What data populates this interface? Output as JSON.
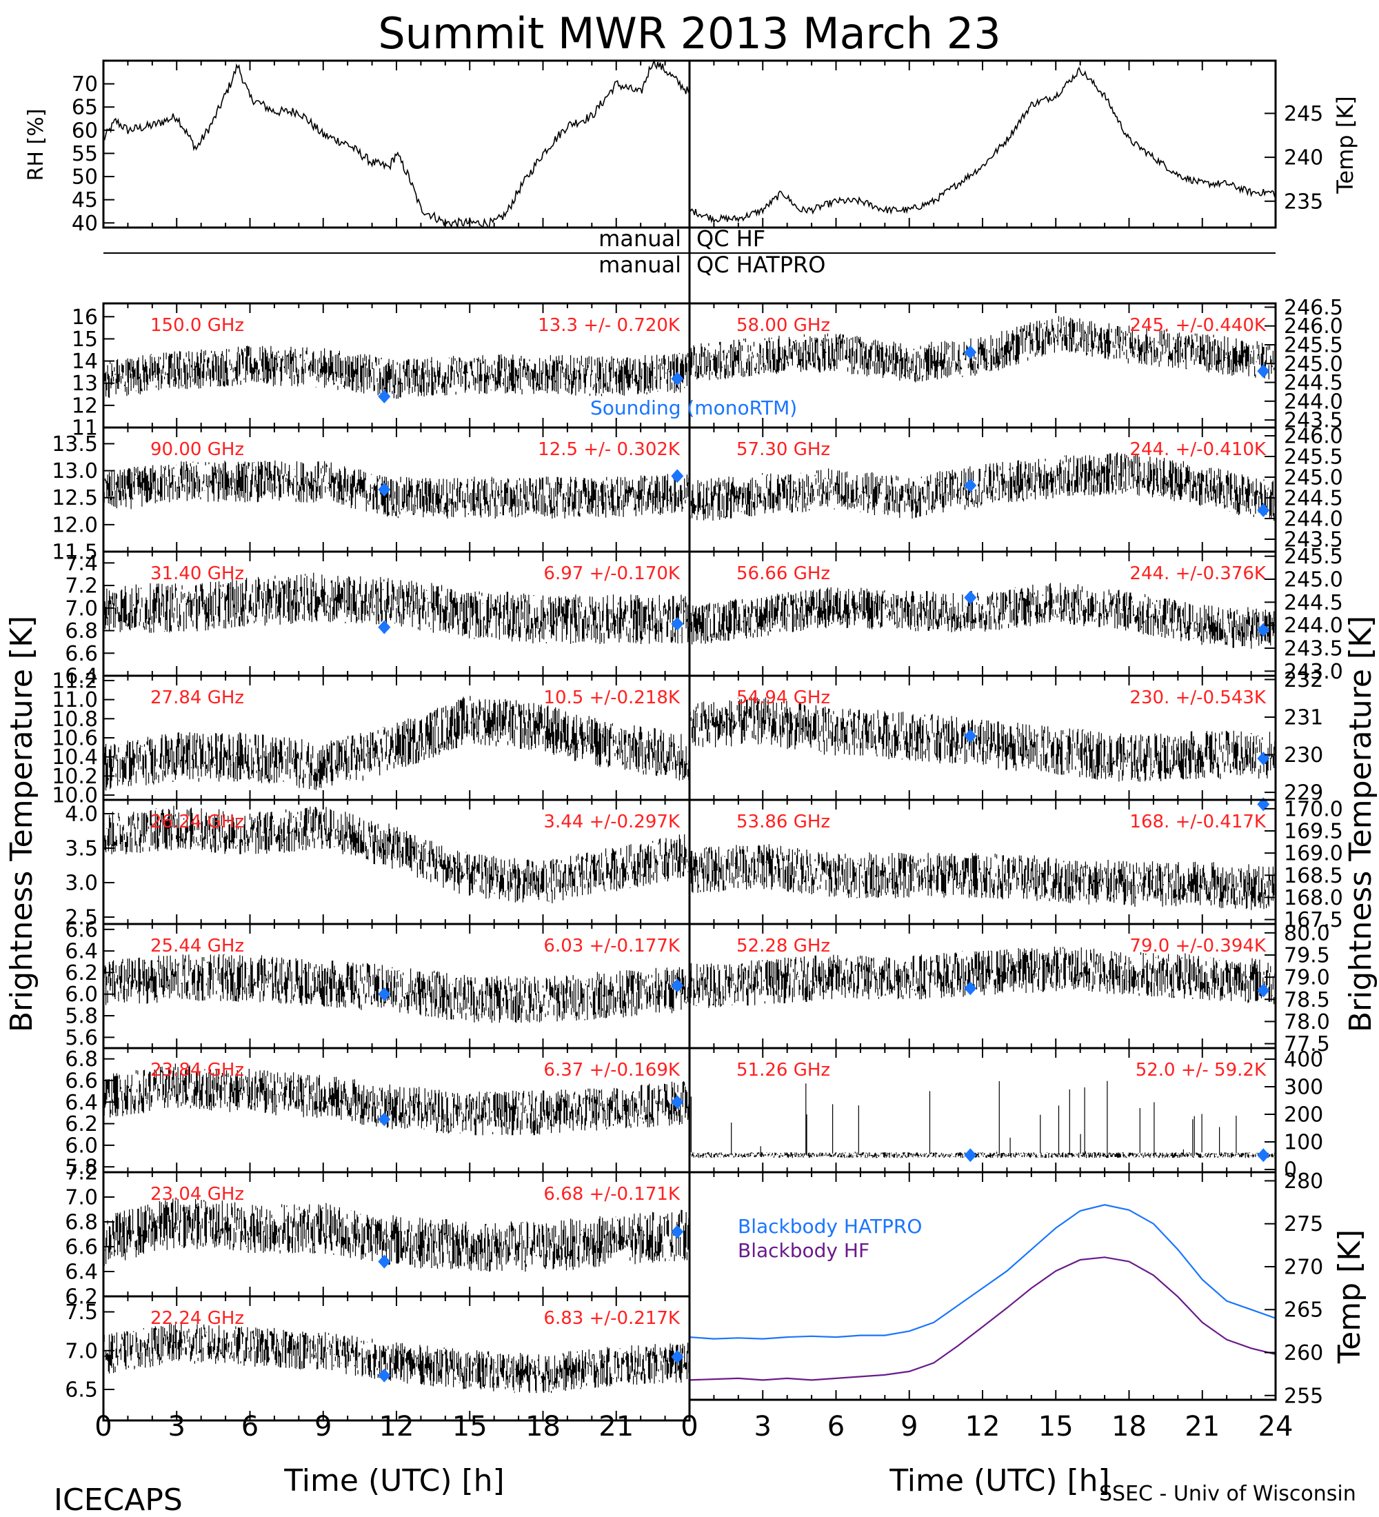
{
  "title": "Summit MWR 2013 March 23",
  "footer": {
    "left": "ICECAPS",
    "right": "SSEC - Univ of Wisconsin",
    "xlabel_left": "Time (UTC) [h]",
    "xlabel_right": "Time (UTC) [h]"
  },
  "ylabels": {
    "left": "Brightness Temperature [K]",
    "right": "Brightness Temperature [K]",
    "rh": "RH [%]",
    "temp_top": "Temp [K]",
    "temp_bb": "Temp [K]"
  },
  "qc": {
    "left1": "manual",
    "right1": "QC HF",
    "left2": "manual",
    "right2": "QC HATPRO"
  },
  "xticks": [
    "0",
    "3",
    "6",
    "9",
    "12",
    "15",
    "18",
    "21",
    "24"
  ],
  "colors": {
    "annotation": "#ff2020",
    "sounding": "#1a75ff",
    "hatpro": "#1a75ff",
    "hf": "#6a1a8a",
    "trace": "#000000"
  },
  "legend": {
    "sounding": "Sounding (monoRTM)",
    "bb_hatpro": "Blackbody HATPRO",
    "bb_hf": "Blackbody HF"
  },
  "chart_data": [
    {
      "id": "rh",
      "type": "line",
      "ylabel": "RH [%]",
      "xlim": [
        0,
        24
      ],
      "ylim": [
        39,
        75
      ],
      "yticks": [
        "40",
        "45",
        "50",
        "55",
        "60",
        "65",
        "70"
      ],
      "x": [
        0,
        0.5,
        1,
        2,
        3,
        3.8,
        4.5,
        5.2,
        5.5,
        6,
        7,
        8,
        9,
        10,
        11,
        11.7,
        12,
        12.5,
        13,
        14,
        15,
        16,
        16.5,
        17,
        18,
        19,
        20,
        21,
        22,
        22.5,
        23,
        24
      ],
      "y": [
        58,
        62,
        60,
        61,
        63,
        56,
        62,
        70,
        74,
        67,
        64,
        64,
        59,
        57,
        53,
        52,
        55,
        50,
        43,
        40,
        40,
        40,
        42,
        47,
        55,
        61,
        63,
        70,
        68,
        75,
        73,
        68
      ]
    },
    {
      "id": "air_temp",
      "type": "line",
      "ylabel": "Temp [K]",
      "xlim": [
        0,
        24
      ],
      "ylim": [
        232,
        251
      ],
      "yticks": [
        "235",
        "240",
        "245"
      ],
      "x": [
        0,
        1,
        2,
        3,
        3.8,
        4.5,
        5,
        6,
        7,
        8,
        9,
        10,
        11,
        12,
        13,
        14,
        15,
        16,
        17,
        18,
        19,
        20,
        21,
        22,
        23,
        24
      ],
      "y": [
        234,
        233,
        233,
        234,
        236,
        234,
        234,
        235,
        235,
        234,
        234,
        235,
        237,
        239,
        242,
        246,
        247,
        250,
        247,
        242,
        240,
        238,
        237,
        237,
        236,
        236
      ]
    },
    {
      "id": "ch_150.0",
      "type": "scatter",
      "side": "left",
      "freq": "150.0 GHz",
      "stat": "13.3 +/- 0.720K",
      "ylim": [
        11,
        16.6
      ],
      "yticks": [
        "11",
        "12",
        "13",
        "14",
        "15",
        "16"
      ],
      "trend": {
        "x": [
          0,
          3,
          6,
          9,
          12,
          15,
          18,
          21,
          24
        ],
        "y": [
          13.2,
          13.6,
          13.8,
          13.7,
          13.2,
          13.4,
          13.4,
          13.3,
          13.5
        ]
      },
      "noise": 0.7,
      "sounding": {
        "x": [
          11.5,
          23.5
        ],
        "y": [
          12.4,
          13.2
        ]
      }
    },
    {
      "id": "ch_90.00",
      "type": "scatter",
      "side": "left",
      "freq": "90.00 GHz",
      "stat": "12.5 +/- 0.302K",
      "ylim": [
        11.5,
        13.8
      ],
      "yticks": [
        "11.5",
        "12.0",
        "12.5",
        "13.0",
        "13.5"
      ],
      "trend": {
        "x": [
          0,
          3,
          6,
          9,
          12,
          15,
          18,
          21,
          24
        ],
        "y": [
          12.6,
          12.8,
          12.8,
          12.8,
          12.5,
          12.5,
          12.5,
          12.5,
          12.6
        ]
      },
      "noise": 0.3,
      "sounding": {
        "x": [
          11.5,
          23.5
        ],
        "y": [
          12.65,
          12.9
        ]
      }
    },
    {
      "id": "ch_31.40",
      "type": "scatter",
      "side": "left",
      "freq": "31.40 GHz",
      "stat": "6.97 +/-0.170K",
      "ylim": [
        6.4,
        7.5
      ],
      "yticks": [
        "6.4",
        "6.6",
        "6.8",
        "7.0",
        "7.2",
        "7.4"
      ],
      "trend": {
        "x": [
          0,
          3,
          6,
          9,
          12,
          15,
          18,
          21,
          24
        ],
        "y": [
          7.0,
          7.0,
          7.05,
          7.1,
          7.05,
          6.95,
          6.9,
          6.9,
          6.9
        ]
      },
      "noise": 0.17,
      "sounding": {
        "x": [
          11.5,
          23.5
        ],
        "y": [
          6.83,
          6.86
        ]
      }
    },
    {
      "id": "ch_27.84",
      "type": "scatter",
      "side": "left",
      "freq": "27.84 GHz",
      "stat": "10.5 +/-0.218K",
      "ylim": [
        9.95,
        11.25
      ],
      "yticks": [
        "10.0",
        "10.2",
        "10.4",
        "10.6",
        "10.8",
        "11.0",
        "11.2"
      ],
      "trend": {
        "x": [
          0,
          3,
          6,
          9,
          12,
          15,
          18,
          21,
          24
        ],
        "y": [
          10.3,
          10.4,
          10.4,
          10.3,
          10.5,
          10.8,
          10.7,
          10.5,
          10.4
        ]
      },
      "noise": 0.2,
      "sounding": null
    },
    {
      "id": "ch_26.24",
      "type": "scatter",
      "side": "left",
      "freq": "26.24 GHz",
      "stat": "3.44 +/-0.297K",
      "ylim": [
        2.4,
        4.2
      ],
      "yticks": [
        "2.5",
        "3.0",
        "3.5",
        "4.0"
      ],
      "trend": {
        "x": [
          0,
          3,
          6,
          9,
          12,
          15,
          18,
          21,
          24
        ],
        "y": [
          3.7,
          3.8,
          3.7,
          3.8,
          3.5,
          3.1,
          3.0,
          3.2,
          3.4
        ]
      },
      "noise": 0.25,
      "sounding": null
    },
    {
      "id": "ch_25.44",
      "type": "scatter",
      "side": "left",
      "freq": "25.44 GHz",
      "stat": "6.03 +/-0.177K",
      "ylim": [
        5.5,
        6.65
      ],
      "yticks": [
        "5.6",
        "5.8",
        "6.0",
        "6.2",
        "6.4",
        "6.6"
      ],
      "trend": {
        "x": [
          0,
          3,
          6,
          9,
          12,
          15,
          18,
          21,
          24
        ],
        "y": [
          6.1,
          6.15,
          6.15,
          6.1,
          6.05,
          5.95,
          5.95,
          6.0,
          6.05
        ]
      },
      "noise": 0.17,
      "sounding": {
        "x": [
          11.5,
          23.5
        ],
        "y": [
          6.0,
          6.08
        ]
      }
    },
    {
      "id": "ch_23.84",
      "type": "scatter",
      "side": "left",
      "freq": "23.84 GHz",
      "stat": "6.37 +/-0.169K",
      "ylim": [
        5.75,
        6.9
      ],
      "yticks": [
        "5.8",
        "6.0",
        "6.2",
        "6.4",
        "6.6",
        "6.8"
      ],
      "trend": {
        "x": [
          0,
          3,
          6,
          9,
          12,
          15,
          18,
          21,
          24
        ],
        "y": [
          6.45,
          6.55,
          6.5,
          6.45,
          6.35,
          6.3,
          6.3,
          6.35,
          6.4
        ]
      },
      "noise": 0.16,
      "sounding": {
        "x": [
          11.5,
          23.5
        ],
        "y": [
          6.24,
          6.4
        ]
      }
    },
    {
      "id": "ch_23.04",
      "type": "scatter",
      "side": "left",
      "freq": "23.04 GHz",
      "stat": "6.68 +/-0.171K",
      "ylim": [
        6.2,
        7.2
      ],
      "yticks": [
        "6.2",
        "6.4",
        "6.6",
        "6.8",
        "7.0",
        "7.2"
      ],
      "trend": {
        "x": [
          0,
          3,
          6,
          9,
          12,
          15,
          18,
          21,
          24
        ],
        "y": [
          6.65,
          6.8,
          6.75,
          6.75,
          6.65,
          6.6,
          6.6,
          6.65,
          6.7
        ]
      },
      "noise": 0.16,
      "sounding": {
        "x": [
          11.5,
          23.5
        ],
        "y": [
          6.48,
          6.72
        ]
      }
    },
    {
      "id": "ch_22.24",
      "type": "scatter",
      "side": "left",
      "freq": "22.24 GHz",
      "stat": "6.83 +/-0.217K",
      "ylim": [
        6.1,
        7.7
      ],
      "yticks": [
        "6.5",
        "7.0",
        "7.5"
      ],
      "trend": {
        "x": [
          0,
          3,
          6,
          9,
          12,
          15,
          18,
          21,
          24
        ],
        "y": [
          6.95,
          7.1,
          7.05,
          7.0,
          6.85,
          6.75,
          6.7,
          6.8,
          6.85
        ]
      },
      "noise": 0.2,
      "sounding": {
        "x": [
          11.5,
          23.5
        ],
        "y": [
          6.68,
          6.92
        ]
      }
    },
    {
      "id": "ch_58.00",
      "type": "scatter",
      "side": "right",
      "freq": "58.00 GHz",
      "stat": "245. +/-0.440K",
      "ylim": [
        243.3,
        246.6
      ],
      "yticks": [
        "243.5",
        "244.0",
        "244.5",
        "245.0",
        "245.5",
        "246.0",
        "246.5"
      ],
      "trend": {
        "x": [
          0,
          3,
          6,
          9,
          12,
          15,
          18,
          21,
          24
        ],
        "y": [
          245.0,
          245.2,
          245.3,
          245.0,
          245.2,
          245.8,
          245.5,
          245.3,
          245.0
        ]
      },
      "noise": 0.4,
      "sounding": {
        "x": [
          11.5,
          23.5
        ],
        "y": [
          245.3,
          244.8
        ]
      }
    },
    {
      "id": "ch_57.30",
      "type": "scatter",
      "side": "right",
      "freq": "57.30 GHz",
      "stat": "244. +/-0.410K",
      "ylim": [
        243.2,
        246.2
      ],
      "yticks": [
        "243.5",
        "244.0",
        "244.5",
        "245.0",
        "245.5",
        "246.0"
      ],
      "trend": {
        "x": [
          0,
          3,
          6,
          9,
          12,
          15,
          18,
          21,
          24
        ],
        "y": [
          244.4,
          244.6,
          244.7,
          244.5,
          244.8,
          245.0,
          245.1,
          244.8,
          244.4
        ]
      },
      "noise": 0.4,
      "sounding": {
        "x": [
          11.5,
          23.5
        ],
        "y": [
          244.8,
          244.2
        ]
      }
    },
    {
      "id": "ch_56.66",
      "type": "scatter",
      "side": "right",
      "freq": "56.66 GHz",
      "stat": "244. +/-0.376K",
      "ylim": [
        242.9,
        245.6
      ],
      "yticks": [
        "243.0",
        "243.5",
        "244.0",
        "244.5",
        "245.0",
        "245.5"
      ],
      "trend": {
        "x": [
          0,
          3,
          6,
          9,
          12,
          15,
          18,
          21,
          24
        ],
        "y": [
          244.0,
          244.2,
          244.4,
          244.3,
          244.3,
          244.5,
          244.3,
          244.0,
          243.9
        ]
      },
      "noise": 0.35,
      "sounding": {
        "x": [
          11.5,
          23.5
        ],
        "y": [
          244.6,
          243.9
        ]
      }
    },
    {
      "id": "ch_54.94",
      "type": "scatter",
      "side": "right",
      "freq": "54.94 GHz",
      "stat": "230. +/-0.543K",
      "ylim": [
        228.8,
        232.1
      ],
      "yticks": [
        "229",
        "230",
        "231",
        "232"
      ],
      "trend": {
        "x": [
          0,
          3,
          6,
          9,
          12,
          15,
          18,
          21,
          24
        ],
        "y": [
          230.8,
          230.9,
          230.6,
          230.5,
          230.3,
          230.1,
          229.9,
          230.0,
          230.0
        ]
      },
      "noise": 0.5,
      "sounding": {
        "x": [
          11.5,
          23.5
        ],
        "y": [
          230.5,
          229.9
        ]
      }
    },
    {
      "id": "ch_53.86",
      "type": "scatter",
      "side": "right",
      "freq": "53.86 GHz",
      "stat": "168. +/-0.417K",
      "ylim": [
        167.4,
        170.2
      ],
      "yticks": [
        "167.5",
        "168.0",
        "168.5",
        "169.0",
        "169.5",
        "170.0"
      ],
      "trend": {
        "x": [
          0,
          3,
          6,
          9,
          12,
          15,
          18,
          21,
          24
        ],
        "y": [
          168.6,
          168.7,
          168.5,
          168.5,
          168.5,
          168.4,
          168.3,
          168.3,
          168.2
        ]
      },
      "noise": 0.4,
      "sounding": {
        "x": [
          23.5
        ],
        "y": [
          170.1
        ]
      }
    },
    {
      "id": "ch_52.28",
      "type": "scatter",
      "side": "right",
      "freq": "52.28 GHz",
      "stat": "79.0 +/-0.394K",
      "ylim": [
        77.4,
        80.2
      ],
      "yticks": [
        "77.5",
        "78.0",
        "78.5",
        "79.0",
        "79.5",
        "80.0"
      ],
      "trend": {
        "x": [
          0,
          3,
          6,
          9,
          12,
          15,
          18,
          21,
          24
        ],
        "y": [
          78.8,
          78.9,
          79.0,
          79.0,
          79.1,
          79.2,
          79.1,
          79.0,
          78.9
        ]
      },
      "noise": 0.4,
      "sounding": {
        "x": [
          11.5,
          23.5
        ],
        "y": [
          78.75,
          78.7
        ]
      }
    },
    {
      "id": "ch_51.26",
      "type": "scatter",
      "side": "right",
      "freq": "51.26 GHz",
      "stat": "52.0 +/- 59.2K",
      "ylim": [
        -10,
        440
      ],
      "yticks": [
        "0",
        "100",
        "200",
        "300",
        "400"
      ],
      "trend": {
        "x": [
          0,
          24
        ],
        "y": [
          52,
          52
        ]
      },
      "noise": 8,
      "sounding": {
        "x": [
          11.5,
          23.5
        ],
        "y": [
          52,
          52
        ]
      }
    },
    {
      "id": "blackbody",
      "type": "line",
      "ylabel": "Temp [K]",
      "xlim": [
        0,
        24
      ],
      "ylim": [
        254.5,
        281
      ],
      "yticks": [
        "255",
        "260",
        "265",
        "270",
        "275",
        "280"
      ],
      "series": [
        {
          "name": "Blackbody HATPRO",
          "x": [
            0,
            1,
            2,
            3,
            4,
            5,
            6,
            7,
            8,
            9,
            10,
            11,
            12,
            13,
            14,
            15,
            16,
            17,
            18,
            19,
            20,
            21,
            22,
            23,
            24
          ],
          "y": [
            261.8,
            261.6,
            261.7,
            261.6,
            261.8,
            261.9,
            261.8,
            262,
            262,
            262.5,
            263.5,
            265.5,
            267.5,
            269.5,
            272,
            274.5,
            276.5,
            277.2,
            276.6,
            275,
            272,
            268.5,
            266,
            265,
            264
          ]
        },
        {
          "name": "Blackbody HF",
          "x": [
            0,
            1,
            2,
            3,
            4,
            5,
            6,
            7,
            8,
            9,
            10,
            11,
            12,
            13,
            14,
            15,
            16,
            17,
            18,
            19,
            20,
            21,
            22,
            23,
            24
          ],
          "y": [
            256.8,
            256.9,
            257,
            256.8,
            257,
            256.8,
            257,
            257.2,
            257.4,
            257.8,
            258.8,
            260.8,
            263,
            265.2,
            267.5,
            269.5,
            270.8,
            271.1,
            270.6,
            269,
            266.5,
            263.5,
            261.5,
            260.5,
            259.8
          ]
        }
      ]
    }
  ]
}
